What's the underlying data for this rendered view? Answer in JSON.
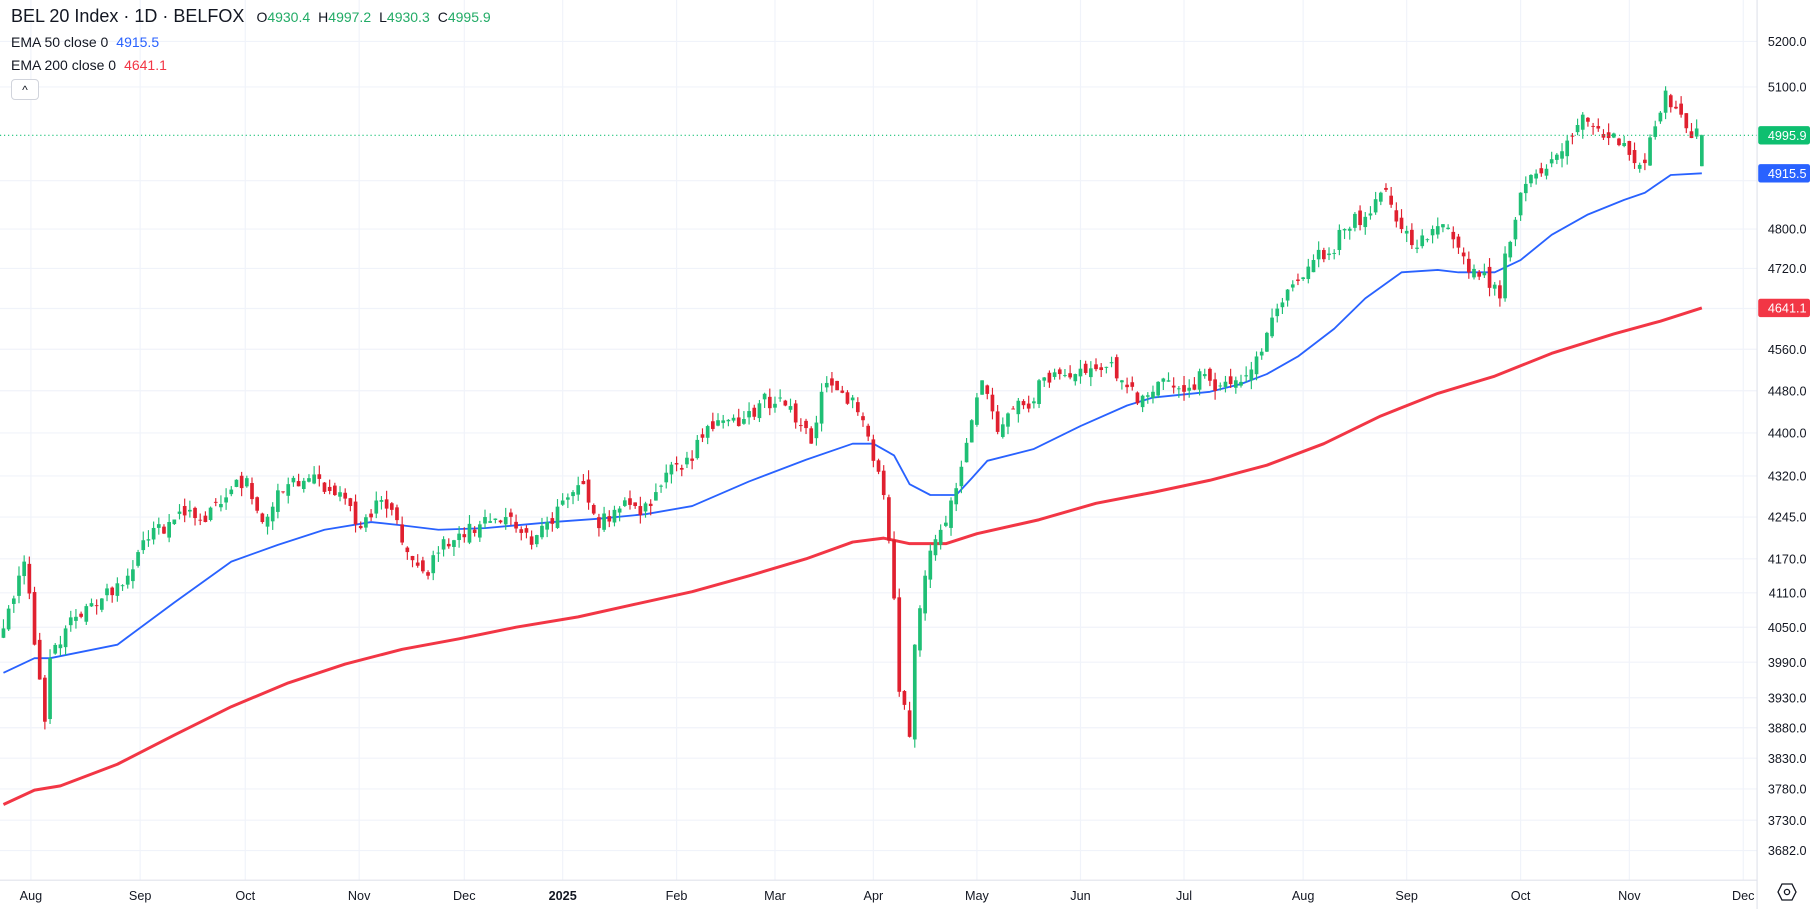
{
  "legend": {
    "title": "BEL 20 Index · 1D · BELFOX",
    "ohlc": [
      {
        "k": "O",
        "v": "4930.4"
      },
      {
        "k": "H",
        "v": "4997.2"
      },
      {
        "k": "L",
        "v": "4930.3"
      },
      {
        "k": "C",
        "v": "4995.9"
      }
    ],
    "indicators": [
      {
        "label": "EMA 50 close 0",
        "value": "4915.5",
        "color": "#2962ff"
      },
      {
        "label": "EMA 200 close 0",
        "value": "4641.1",
        "color": "#f23645"
      }
    ],
    "collapse_icon": "^"
  },
  "colors": {
    "up": "#1fbf75",
    "down": "#e0202f",
    "ema50": "#2962ff",
    "ema200": "#f23645",
    "last": "#0ebf70"
  },
  "chart_data": {
    "type": "candlestick",
    "title": "BEL 20 Index · 1D · BELFOX",
    "y_scale": "log",
    "ylim": [
      3640,
      5260
    ],
    "bar_count": 329,
    "y_ticks": [
      "5200.0",
      "5100.0",
      "4800.0",
      "4720.0",
      "4560.0",
      "4480.0",
      "4400.0",
      "4320.0",
      "4245.0",
      "4170.0",
      "4110.0",
      "4050.0",
      "3990.0",
      "3930.0",
      "3880.0",
      "3830.0",
      "3780.0",
      "3730.0",
      "3682.0"
    ],
    "x_ticks": [
      {
        "label": "Aug",
        "bar": 5.3
      },
      {
        "label": "Sep",
        "bar": 26.4
      },
      {
        "label": "Oct",
        "bar": 46.7
      },
      {
        "label": "Nov",
        "bar": 68.7
      },
      {
        "label": "Dec",
        "bar": 89
      },
      {
        "label": "2025",
        "bar": 108
      },
      {
        "label": "Feb",
        "bar": 130
      },
      {
        "label": "Mar",
        "bar": 149
      },
      {
        "label": "Apr",
        "bar": 168
      },
      {
        "label": "May",
        "bar": 188
      },
      {
        "label": "Jun",
        "bar": 208
      },
      {
        "label": "Jul",
        "bar": 228
      },
      {
        "label": "Aug",
        "bar": 251
      },
      {
        "label": "Sep",
        "bar": 271
      },
      {
        "label": "Oct",
        "bar": 293
      },
      {
        "label": "Nov",
        "bar": 314
      },
      {
        "label": "Dec",
        "bar": 336
      }
    ],
    "close_keypoints": [
      [
        0,
        4048
      ],
      [
        4,
        4165
      ],
      [
        6,
        4020
      ],
      [
        8,
        3890
      ],
      [
        9,
        3997
      ],
      [
        12,
        4048
      ],
      [
        15,
        4068
      ],
      [
        19,
        4100
      ],
      [
        24,
        4140
      ],
      [
        26,
        4182
      ],
      [
        28,
        4205
      ],
      [
        32,
        4236
      ],
      [
        36,
        4258
      ],
      [
        39,
        4236
      ],
      [
        44,
        4295
      ],
      [
        47,
        4316
      ],
      [
        50,
        4236
      ],
      [
        55,
        4305
      ],
      [
        59,
        4316
      ],
      [
        64,
        4285
      ],
      [
        67,
        4265
      ],
      [
        69,
        4225
      ],
      [
        72,
        4275
      ],
      [
        75,
        4258
      ],
      [
        78,
        4182
      ],
      [
        82,
        4140
      ],
      [
        85,
        4205
      ],
      [
        88,
        4215
      ],
      [
        93,
        4245
      ],
      [
        97,
        4245
      ],
      [
        102,
        4195
      ],
      [
        105,
        4236
      ],
      [
        108,
        4275
      ],
      [
        112,
        4305
      ],
      [
        115,
        4225
      ],
      [
        118,
        4258
      ],
      [
        122,
        4265
      ],
      [
        125,
        4265
      ],
      [
        128,
        4326
      ],
      [
        133,
        4348
      ],
      [
        136,
        4413
      ],
      [
        138,
        4424
      ],
      [
        142,
        4413
      ],
      [
        146,
        4456
      ],
      [
        150,
        4467
      ],
      [
        154,
        4413
      ],
      [
        156,
        4380
      ],
      [
        158,
        4478
      ],
      [
        160,
        4490
      ],
      [
        164,
        4467
      ],
      [
        166,
        4424
      ],
      [
        168,
        4348
      ],
      [
        170,
        4285
      ],
      [
        172,
        4100
      ],
      [
        173,
        3940
      ],
      [
        175,
        3865
      ],
      [
        176,
        4020
      ],
      [
        178,
        4140
      ],
      [
        180,
        4205
      ],
      [
        183,
        4275
      ],
      [
        185,
        4337
      ],
      [
        187,
        4424
      ],
      [
        189,
        4500
      ],
      [
        192,
        4402
      ],
      [
        195,
        4446
      ],
      [
        198,
        4446
      ],
      [
        200,
        4500
      ],
      [
        204,
        4512
      ],
      [
        207,
        4512
      ],
      [
        210,
        4523
      ],
      [
        214,
        4535
      ],
      [
        216,
        4500
      ],
      [
        219,
        4456
      ],
      [
        222,
        4478
      ],
      [
        225,
        4500
      ],
      [
        228,
        4478
      ],
      [
        232,
        4512
      ],
      [
        235,
        4490
      ],
      [
        238,
        4500
      ],
      [
        242,
        4546
      ],
      [
        244,
        4592
      ],
      [
        247,
        4652
      ],
      [
        249,
        4688
      ],
      [
        253,
        4737
      ],
      [
        256,
        4750
      ],
      [
        259,
        4800
      ],
      [
        263,
        4825
      ],
      [
        266,
        4875
      ],
      [
        268,
        4850
      ],
      [
        270,
        4800
      ],
      [
        273,
        4762
      ],
      [
        276,
        4800
      ],
      [
        278,
        4810
      ],
      [
        281,
        4762
      ],
      [
        283,
        4712
      ],
      [
        286,
        4712
      ],
      [
        289,
        4660
      ],
      [
        290,
        4750
      ],
      [
        293,
        4875
      ],
      [
        295,
        4912
      ],
      [
        298,
        4925
      ],
      [
        301,
        4962
      ],
      [
        305,
        5040
      ],
      [
        307,
        5015
      ],
      [
        310,
        4990
      ],
      [
        312,
        4975
      ],
      [
        315,
        4937
      ],
      [
        317,
        4937
      ],
      [
        319,
        5015
      ],
      [
        321,
        5092
      ],
      [
        324,
        5040
      ],
      [
        326,
        4990
      ],
      [
        328,
        4995.9
      ]
    ],
    "series": [
      {
        "name": "EMA 50 close 0",
        "points": [
          [
            0,
            3972
          ],
          [
            6,
            3997
          ],
          [
            9,
            3997
          ],
          [
            22,
            4020
          ],
          [
            33,
            4093
          ],
          [
            44,
            4165
          ],
          [
            53,
            4195
          ],
          [
            62,
            4222
          ],
          [
            71,
            4236
          ],
          [
            77,
            4230
          ],
          [
            84,
            4222
          ],
          [
            93,
            4225
          ],
          [
            106,
            4236
          ],
          [
            115,
            4242
          ],
          [
            124,
            4250
          ],
          [
            133,
            4265
          ],
          [
            144,
            4310
          ],
          [
            155,
            4350
          ],
          [
            164,
            4380
          ],
          [
            168,
            4380
          ],
          [
            172,
            4358
          ],
          [
            175,
            4305
          ],
          [
            179,
            4285
          ],
          [
            184,
            4285
          ],
          [
            187,
            4316
          ],
          [
            190,
            4348
          ],
          [
            199,
            4370
          ],
          [
            208,
            4413
          ],
          [
            217,
            4452
          ],
          [
            222,
            4467
          ],
          [
            233,
            4478
          ],
          [
            239,
            4493
          ],
          [
            244,
            4512
          ],
          [
            250,
            4546
          ],
          [
            257,
            4600
          ],
          [
            263,
            4660
          ],
          [
            270,
            4712
          ],
          [
            277,
            4717
          ],
          [
            281,
            4712
          ],
          [
            288,
            4712
          ],
          [
            293,
            4737
          ],
          [
            299,
            4788
          ],
          [
            306,
            4830
          ],
          [
            313,
            4860
          ],
          [
            317,
            4875
          ],
          [
            322,
            4912
          ],
          [
            328,
            4915.5
          ]
        ]
      },
      {
        "name": "EMA 200 close 0",
        "points": [
          [
            0,
            3755
          ],
          [
            6,
            3778
          ],
          [
            11,
            3785
          ],
          [
            22,
            3820
          ],
          [
            33,
            3868
          ],
          [
            44,
            3915
          ],
          [
            55,
            3955
          ],
          [
            66,
            3987
          ],
          [
            77,
            4012
          ],
          [
            88,
            4030
          ],
          [
            99,
            4050
          ],
          [
            111,
            4068
          ],
          [
            122,
            4090
          ],
          [
            133,
            4112
          ],
          [
            144,
            4140
          ],
          [
            155,
            4170
          ],
          [
            164,
            4200
          ],
          [
            170,
            4207
          ],
          [
            175,
            4197
          ],
          [
            182,
            4197
          ],
          [
            188,
            4215
          ],
          [
            200,
            4240
          ],
          [
            211,
            4270
          ],
          [
            222,
            4290
          ],
          [
            233,
            4312
          ],
          [
            244,
            4340
          ],
          [
            255,
            4380
          ],
          [
            266,
            4432
          ],
          [
            277,
            4475
          ],
          [
            288,
            4508
          ],
          [
            299,
            4552
          ],
          [
            311,
            4590
          ],
          [
            320,
            4615
          ],
          [
            328,
            4641.1
          ]
        ]
      }
    ],
    "price_labels": [
      {
        "value": 4995.9,
        "text": "4995.9",
        "kind": "last"
      },
      {
        "value": 4915.5,
        "text": "4915.5",
        "kind": "ema50"
      },
      {
        "value": 4641.1,
        "text": "4641.1",
        "kind": "ema200"
      }
    ]
  }
}
